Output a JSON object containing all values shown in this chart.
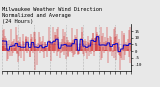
{
  "title": "Milwaukee Weather Wind Direction\nNormalized and Average\n(24 Hours)",
  "title_fontsize": 3.8,
  "bg_color": "#e8e8e8",
  "plot_bg_color": "#e8e8e8",
  "grid_color": "#888888",
  "bar_color": "#cc0000",
  "avg_color": "#0000cc",
  "ylim": [
    -15,
    20
  ],
  "yticks": [
    -10,
    -5,
    0,
    5,
    10,
    15
  ],
  "ytick_labels": [
    "-10",
    "-5",
    "0",
    "5",
    "10",
    "15"
  ],
  "n_points": 288,
  "seed": 42,
  "n_gridlines": 9,
  "avg_step_size": 6
}
